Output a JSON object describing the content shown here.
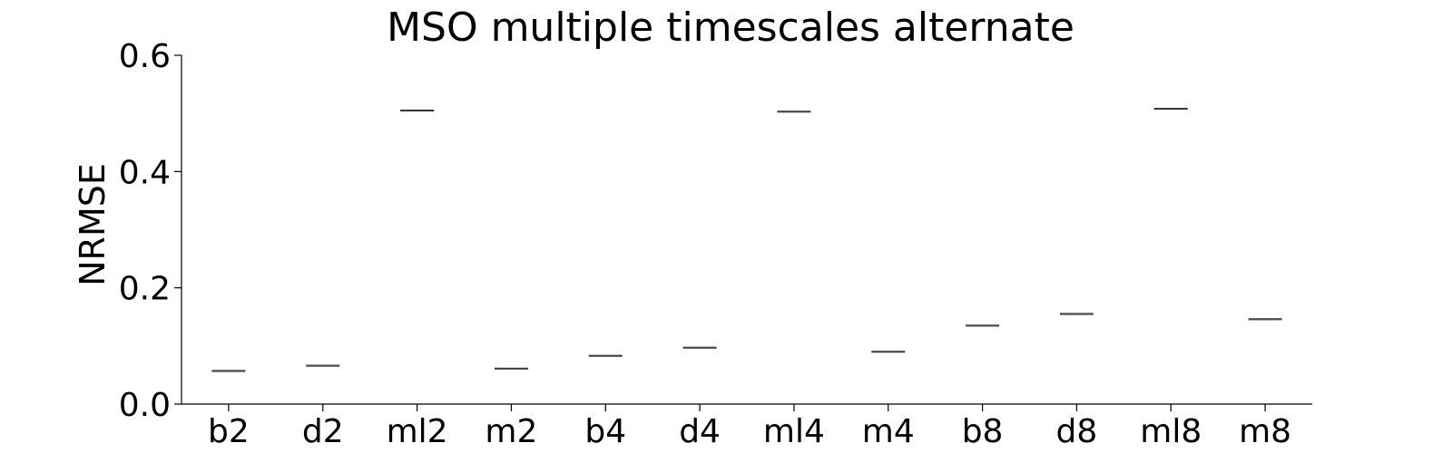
{
  "chart_data": {
    "type": "box",
    "title": "MSO multiple timescales alternate",
    "xlabel": "",
    "ylabel": "NRMSE",
    "categories": [
      "b2",
      "d2",
      "ml2",
      "m2",
      "b4",
      "d4",
      "ml4",
      "m4",
      "b8",
      "d8",
      "ml8",
      "m8"
    ],
    "values": [
      0.057,
      0.066,
      0.505,
      0.061,
      0.083,
      0.097,
      0.503,
      0.09,
      0.135,
      0.155,
      0.508,
      0.146
    ],
    "ylim": [
      0,
      0.6
    ],
    "yticks": [
      "0.0",
      "0.2",
      "0.4",
      "0.6"
    ],
    "grid": false,
    "legend": "none",
    "colors": {
      "axis": "#000000",
      "median_line": "#555555",
      "box_edge": "#000000"
    }
  }
}
